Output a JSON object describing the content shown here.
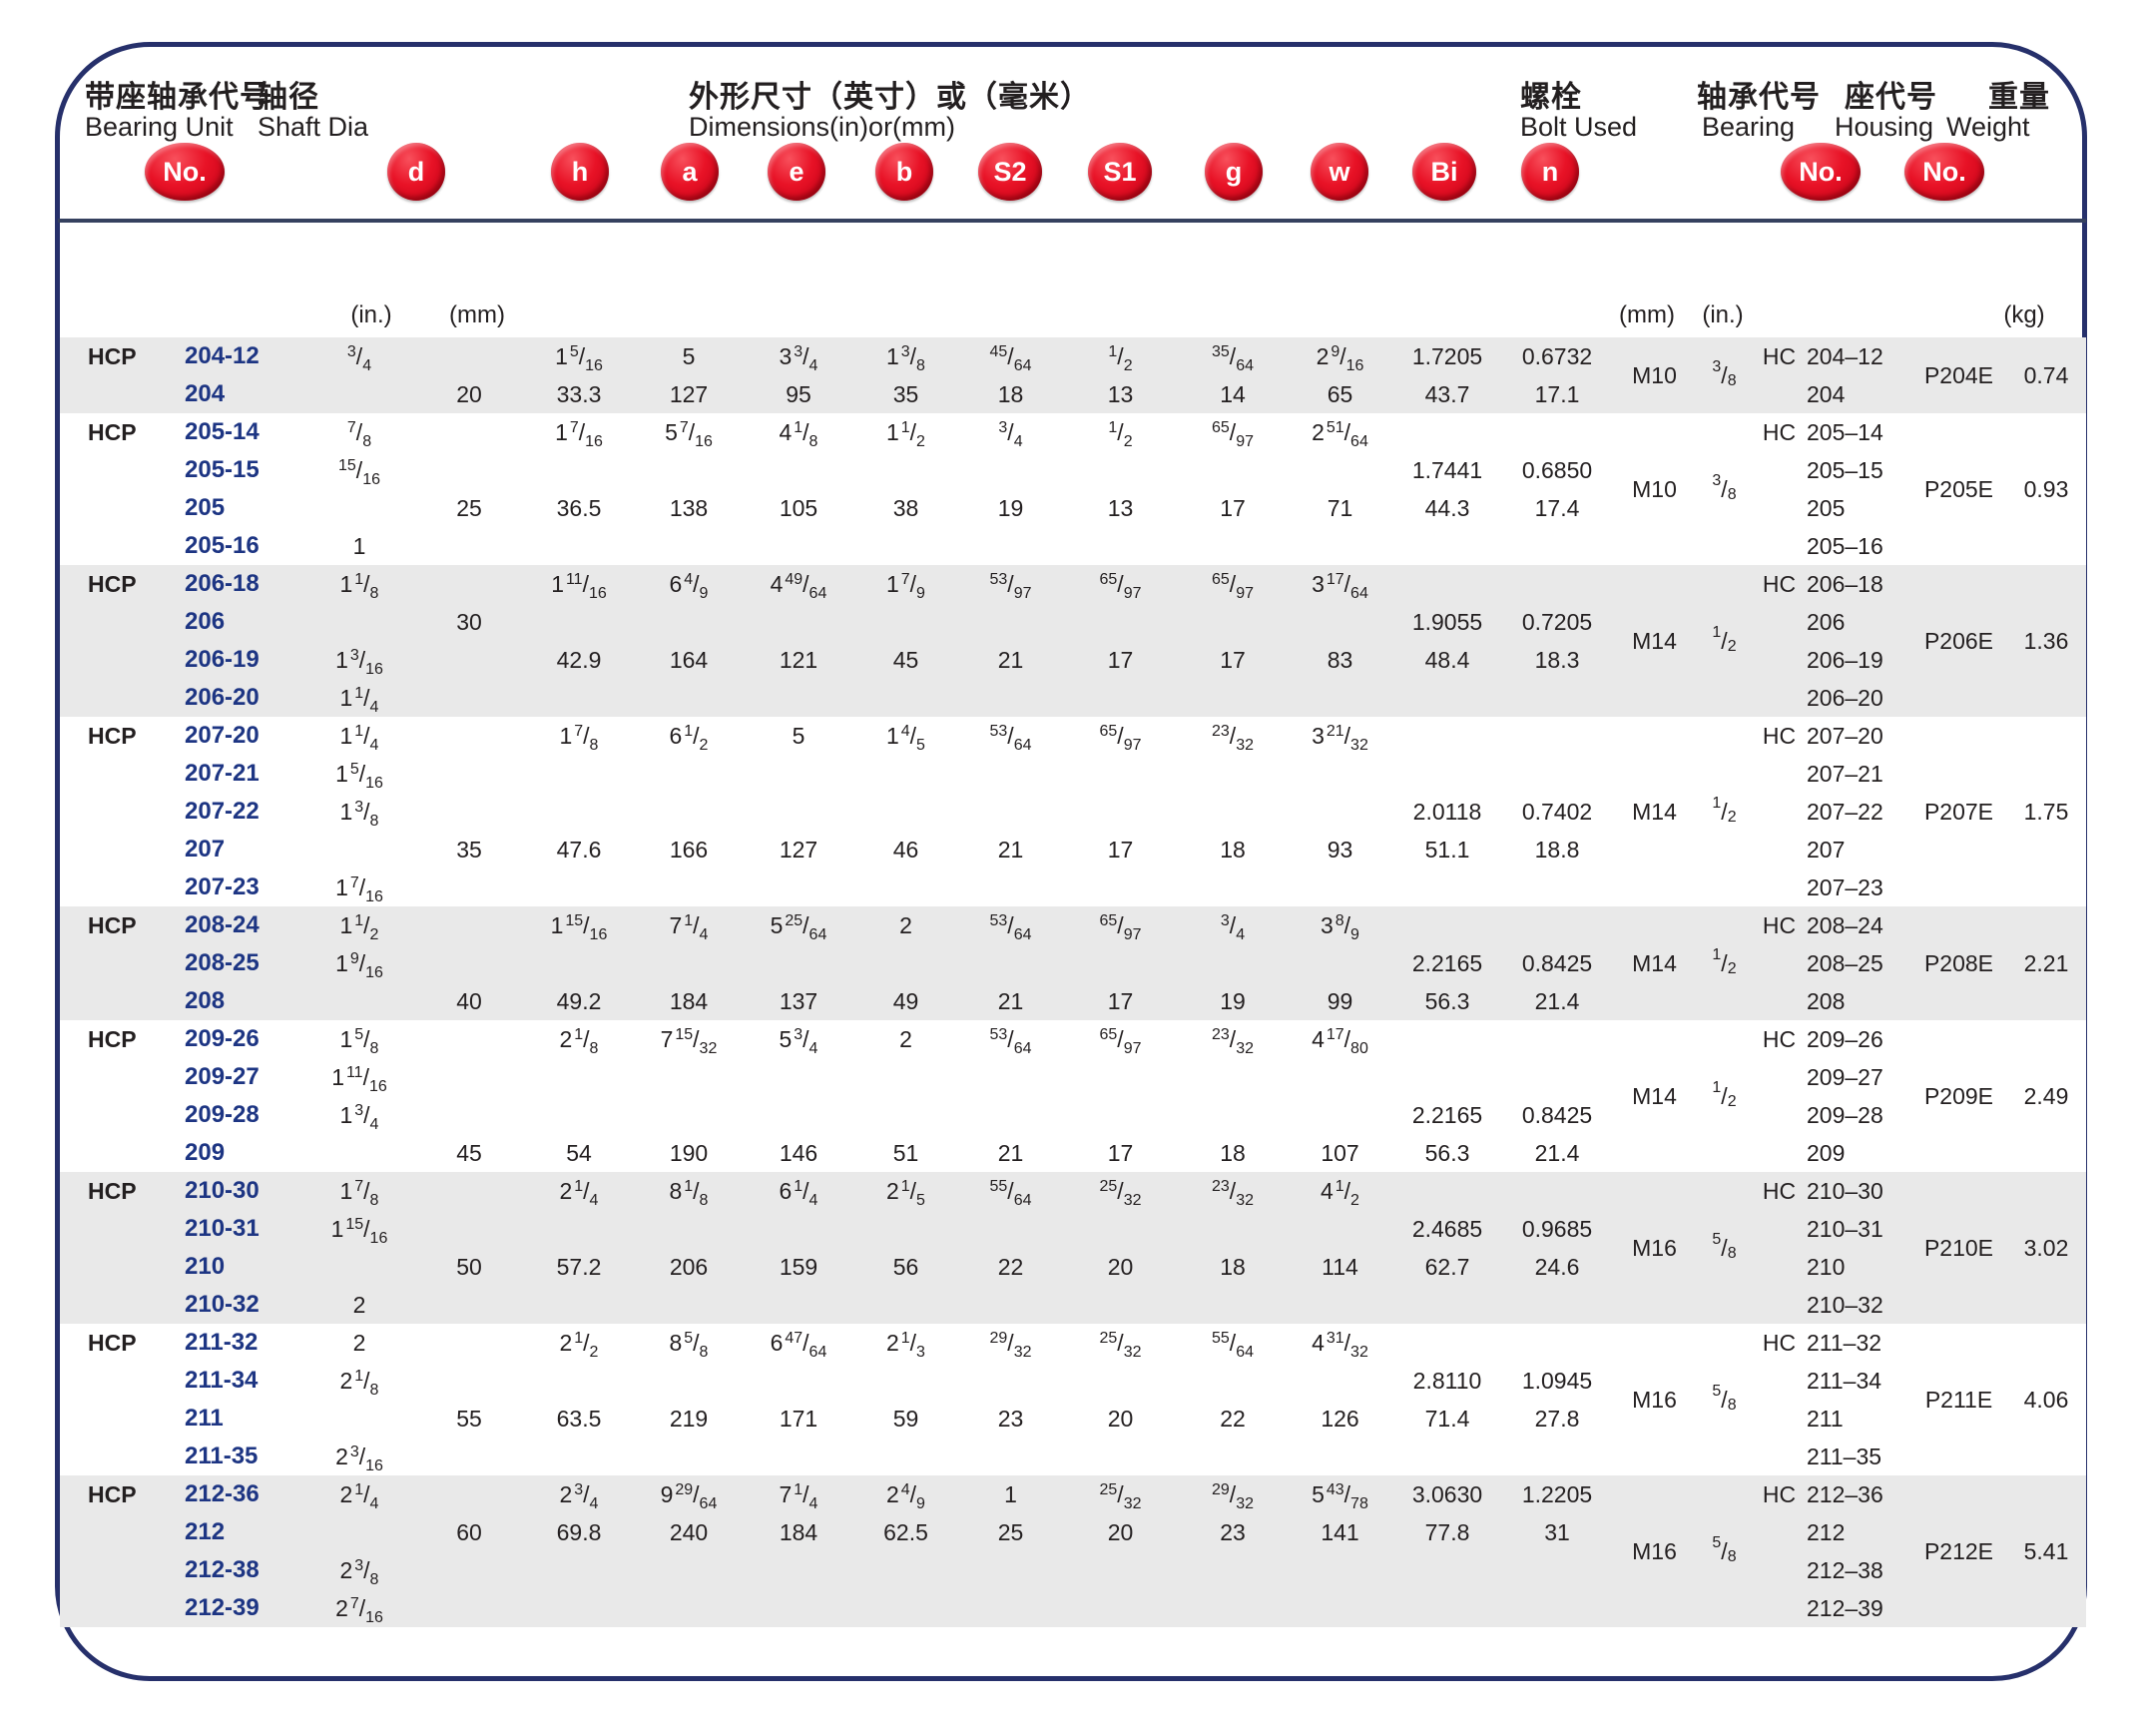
{
  "page": {
    "headers": {
      "bearing_unit_zh": "带座轴承代号",
      "bearing_unit_en": "Bearing Unit",
      "shaft_dia_zh": "轴径",
      "shaft_dia_en": "Shaft Dia",
      "dimensions_zh": "外形尺寸（英寸）或（毫米）",
      "dimensions_en": "Dimensions(in)or(mm)",
      "bolt_zh": "螺栓",
      "bolt_en": "Bolt Used",
      "bearing_zh": "轴承代号",
      "bearing_en": "Bearing",
      "housing_zh": "座代号",
      "housing_en": "Housing",
      "weight_zh": "重量",
      "weight_en": "Weight"
    },
    "badges": [
      {
        "id": "no-left",
        "label": "No."
      },
      {
        "id": "d",
        "label": "d"
      },
      {
        "id": "h",
        "label": "h"
      },
      {
        "id": "a",
        "label": "a"
      },
      {
        "id": "e",
        "label": "e"
      },
      {
        "id": "b",
        "label": "b"
      },
      {
        "id": "s2",
        "label": "S2"
      },
      {
        "id": "s1",
        "label": "S1"
      },
      {
        "id": "g",
        "label": "g"
      },
      {
        "id": "w",
        "label": "w"
      },
      {
        "id": "bi",
        "label": "Bi"
      },
      {
        "id": "n",
        "label": "n"
      },
      {
        "id": "no-bearing",
        "label": "No."
      },
      {
        "id": "no-housing",
        "label": "No."
      }
    ],
    "units": {
      "d_in": "(in.)",
      "d_mm": "(mm)",
      "bolt_mm": "(mm)",
      "bolt_in": "(in.)",
      "weight": "(kg)"
    },
    "colors": {
      "badge_red": "#e81226",
      "frame_navy": "#26306b",
      "row_gray": "#e9e9e9",
      "unit_number_blue": "#1d3583",
      "text": "#231f20"
    }
  },
  "table": {
    "groups": [
      {
        "shade": "gray",
        "bolt_mm": "M10",
        "bolt_in": "3/8",
        "housing": "P204E",
        "weight": "0.74",
        "rows": [
          {
            "p": "HCP",
            "no": "204-12",
            "din": "3/4",
            "h": "1 5/16",
            "a": "5",
            "e": "3 3/4",
            "b": "1 3/8",
            "s2": "45/64",
            "s1": "1/2",
            "g": "35/64",
            "w": "2 9/16",
            "bi": "1.7205",
            "n": "0.6732",
            "hc": "HC",
            "bno": "204–12"
          },
          {
            "no": "204",
            "dmm": "20",
            "h": "33.3",
            "a": "127",
            "e": "95",
            "b": "35",
            "s2": "18",
            "s1": "13",
            "g": "14",
            "w": "65",
            "bi": "43.7",
            "n": "17.1",
            "bno": "204"
          }
        ]
      },
      {
        "shade": "white",
        "bolt_mm": "M10",
        "bolt_in": "3/8",
        "housing": "P205E",
        "weight": "0.93",
        "rows": [
          {
            "p": "HCP",
            "no": "205-14",
            "din": "7/8",
            "h": "1 7/16",
            "a": "5 7/16",
            "e": "4 1/8",
            "b": "1 1/2",
            "s2": "3/4",
            "s1": "1/2",
            "g": "65/97",
            "w": "2 51/64",
            "hc": "HC",
            "bno": "205–14"
          },
          {
            "no": "205-15",
            "din": "15/16",
            "bi": "1.7441",
            "n": "0.6850",
            "bno": "205–15"
          },
          {
            "no": "205",
            "dmm": "25",
            "h": "36.5",
            "a": "138",
            "e": "105",
            "b": "38",
            "s2": "19",
            "s1": "13",
            "g": "17",
            "w": "71",
            "bi": "44.3",
            "n": "17.4",
            "bno": "205"
          },
          {
            "no": "205-16",
            "din": "1",
            "bno": "205–16"
          }
        ]
      },
      {
        "shade": "gray",
        "bolt_mm": "M14",
        "bolt_in": "1/2",
        "housing": "P206E",
        "weight": "1.36",
        "rows": [
          {
            "p": "HCP",
            "no": "206-18",
            "din": "1 1/8",
            "h": "1 11/16",
            "a": "6 4/9",
            "e": "4 49/64",
            "b": "1 7/9",
            "s2": "53/97",
            "s1": "65/97",
            "g": "65/97",
            "w": "3 17/64",
            "hc": "HC",
            "bno": "206–18"
          },
          {
            "no": "206",
            "dmm": "30",
            "bi": "1.9055",
            "n": "0.7205",
            "bno": "206"
          },
          {
            "no": "206-19",
            "din": "1 3/16",
            "h": "42.9",
            "a": "164",
            "e": "121",
            "b": "45",
            "s2": "21",
            "s1": "17",
            "g": "17",
            "w": "83",
            "bi": "48.4",
            "n": "18.3",
            "bno": "206–19"
          },
          {
            "no": "206-20",
            "din": "1 1/4",
            "bno": "206–20"
          }
        ]
      },
      {
        "shade": "white",
        "bolt_mm": "M14",
        "bolt_in": "1/2",
        "housing": "P207E",
        "weight": "1.75",
        "rows": [
          {
            "p": "HCP",
            "no": "207-20",
            "din": "1 1/4",
            "h": "1 7/8",
            "a": "6 1/2",
            "e": "5",
            "b": "1 4/5",
            "s2": "53/64",
            "s1": "65/97",
            "g": "23/32",
            "w": "3 21/32",
            "hc": "HC",
            "bno": "207–20"
          },
          {
            "no": "207-21",
            "din": "1 5/16",
            "bno": "207–21"
          },
          {
            "no": "207-22",
            "din": "1 3/8",
            "bi": "2.0118",
            "n": "0.7402",
            "bno": "207–22"
          },
          {
            "no": "207",
            "dmm": "35",
            "h": "47.6",
            "a": "166",
            "e": "127",
            "b": "46",
            "s2": "21",
            "s1": "17",
            "g": "18",
            "w": "93",
            "bi": "51.1",
            "n": "18.8",
            "bno": "207"
          },
          {
            "no": "207-23",
            "din": "1 7/16",
            "bno": "207–23"
          }
        ]
      },
      {
        "shade": "gray",
        "bolt_mm": "M14",
        "bolt_in": "1/2",
        "housing": "P208E",
        "weight": "2.21",
        "rows": [
          {
            "p": "HCP",
            "no": "208-24",
            "din": "1 1/2",
            "h": "1 15/16",
            "a": "7 1/4",
            "e": "5 25/64",
            "b": "2",
            "s2": "53/64",
            "s1": "65/97",
            "g": "3/4",
            "w": "3 8/9",
            "hc": "HC",
            "bno": "208–24"
          },
          {
            "no": "208-25",
            "din": "1 9/16",
            "bi": "2.2165",
            "n": "0.8425",
            "bno": "208–25"
          },
          {
            "no": "208",
            "dmm": "40",
            "h": "49.2",
            "a": "184",
            "e": "137",
            "b": "49",
            "s2": "21",
            "s1": "17",
            "g": "19",
            "w": "99",
            "bi": "56.3",
            "n": "21.4",
            "bno": "208"
          }
        ]
      },
      {
        "shade": "white",
        "bolt_mm": "M14",
        "bolt_in": "1/2",
        "housing": "P209E",
        "weight": "2.49",
        "rows": [
          {
            "p": "HCP",
            "no": "209-26",
            "din": "1 5/8",
            "h": "2 1/8",
            "a": "7 15/32",
            "e": "5 3/4",
            "b": "2",
            "s2": "53/64",
            "s1": "65/97",
            "g": "23/32",
            "w": "4 17/80",
            "hc": "HC",
            "bno": "209–26"
          },
          {
            "no": "209-27",
            "din": "1 11/16",
            "bno": "209–27"
          },
          {
            "no": "209-28",
            "din": "1 3/4",
            "bi": "2.2165",
            "n": "0.8425",
            "bno": "209–28"
          },
          {
            "no": "209",
            "dmm": "45",
            "h": "54",
            "a": "190",
            "e": "146",
            "b": "51",
            "s2": "21",
            "s1": "17",
            "g": "18",
            "w": "107",
            "bi": "56.3",
            "n": "21.4",
            "bno": "209"
          }
        ]
      },
      {
        "shade": "gray",
        "bolt_mm": "M16",
        "bolt_in": "5/8",
        "housing": "P210E",
        "weight": "3.02",
        "rows": [
          {
            "p": "HCP",
            "no": "210-30",
            "din": "1 7/8",
            "h": "2 1/4",
            "a": "8 1/8",
            "e": "6 1/4",
            "b": "2 1/5",
            "s2": "55/64",
            "s1": "25/32",
            "g": "23/32",
            "w": "4 1/2",
            "hc": "HC",
            "bno": "210–30"
          },
          {
            "no": "210-31",
            "din": "1 15/16",
            "bi": "2.4685",
            "n": "0.9685",
            "bno": "210–31"
          },
          {
            "no": "210",
            "dmm": "50",
            "h": "57.2",
            "a": "206",
            "e": "159",
            "b": "56",
            "s2": "22",
            "s1": "20",
            "g": "18",
            "w": "114",
            "bi": "62.7",
            "n": "24.6",
            "bno": "210"
          },
          {
            "no": "210-32",
            "din": "2",
            "bno": "210–32"
          }
        ]
      },
      {
        "shade": "white",
        "bolt_mm": "M16",
        "bolt_in": "5/8",
        "housing": "P211E",
        "weight": "4.06",
        "rows": [
          {
            "p": "HCP",
            "no": "211-32",
            "din": "2",
            "h": "2 1/2",
            "a": "8 5/8",
            "e": "6 47/64",
            "b": "2 1/3",
            "s2": "29/32",
            "s1": "25/32",
            "g": "55/64",
            "w": "4 31/32",
            "hc": "HC",
            "bno": "211–32"
          },
          {
            "no": "211-34",
            "din": "2 1/8",
            "bi": "2.8110",
            "n": "1.0945",
            "bno": "211–34"
          },
          {
            "no": "211",
            "dmm": "55",
            "h": "63.5",
            "a": "219",
            "e": "171",
            "b": "59",
            "s2": "23",
            "s1": "20",
            "g": "22",
            "w": "126",
            "bi": "71.4",
            "n": "27.8",
            "bno": "211"
          },
          {
            "no": "211-35",
            "din": "2 3/16",
            "bno": "211–35"
          }
        ]
      },
      {
        "shade": "gray",
        "bolt_mm": "M16",
        "bolt_in": "5/8",
        "housing": "P212E",
        "weight": "5.41",
        "rows": [
          {
            "p": "HCP",
            "no": "212-36",
            "din": "2 1/4",
            "h": "2 3/4",
            "a": "9 29/64",
            "e": "7 1/4",
            "b": "2 4/9",
            "s2": "1",
            "s1": "25/32",
            "g": "29/32",
            "w": "5 43/78",
            "bi": "3.0630",
            "n": "1.2205",
            "hc": "HC",
            "bno": "212–36"
          },
          {
            "no": "212",
            "dmm": "60",
            "h": "69.8",
            "a": "240",
            "e": "184",
            "b": "62.5",
            "s2": "25",
            "s1": "20",
            "g": "23",
            "w": "141",
            "bi": "77.8",
            "n": "31",
            "bno": "212"
          },
          {
            "no": "212-38",
            "din": "2 3/8",
            "bno": "212–38"
          },
          {
            "no": "212-39",
            "din": "2 7/16",
            "bno": "212–39"
          }
        ]
      }
    ]
  }
}
